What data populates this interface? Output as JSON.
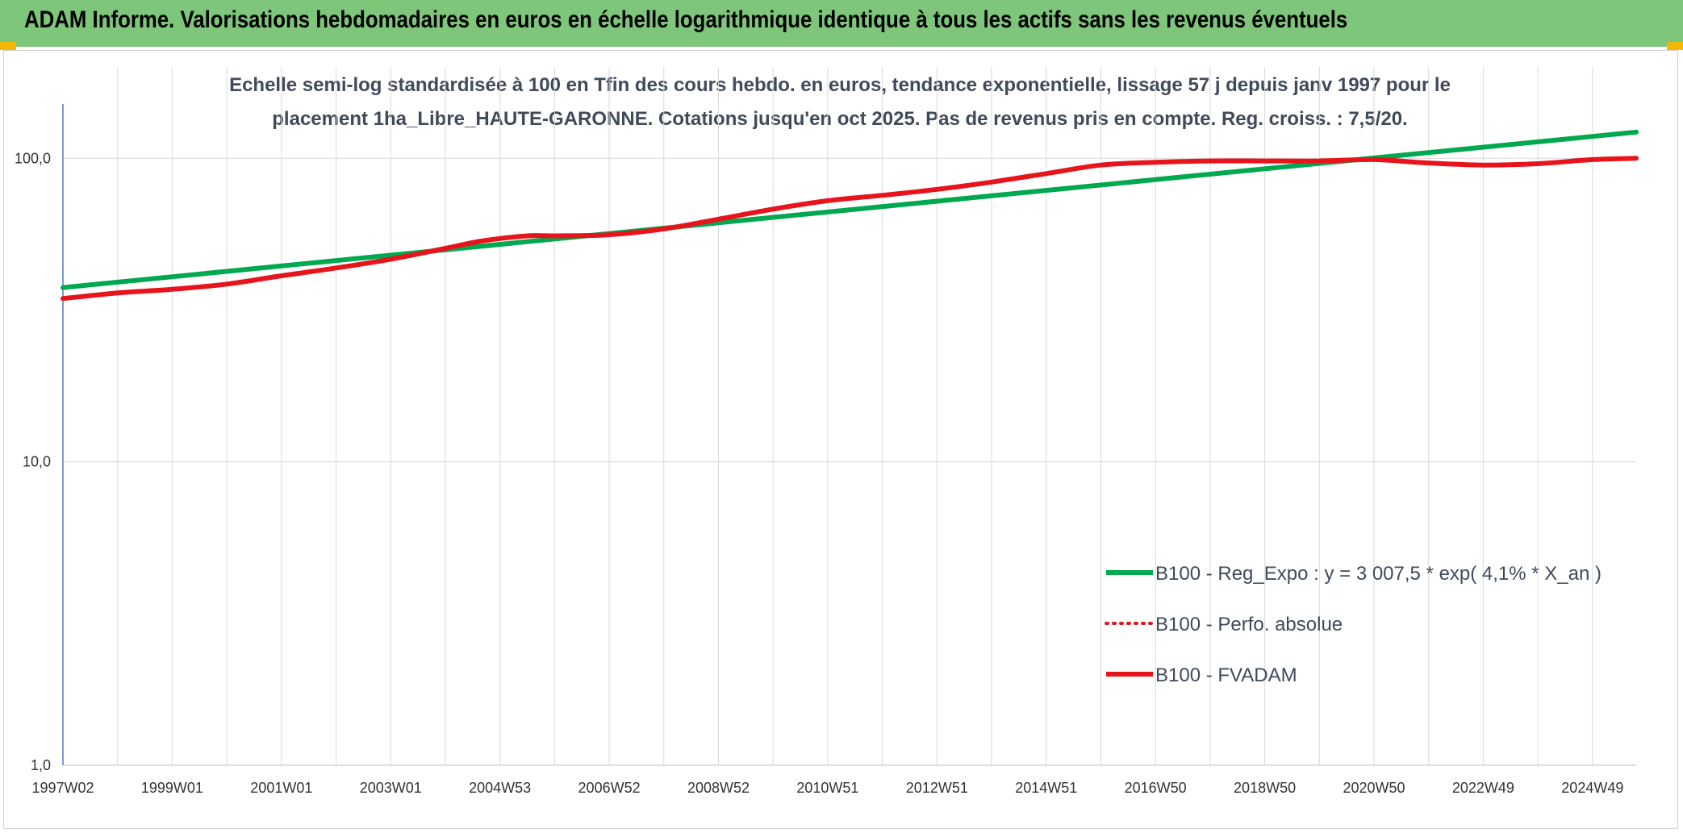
{
  "header": {
    "title": "ADAM Informe. Valorisations hebdomadaires en euros en échelle logarithmique identique à tous les actifs sans les revenus éventuels"
  },
  "colors": {
    "header_bg": "#7dc67a",
    "corner_accent": "#f2b705",
    "green_series": "#00a84f",
    "red_series": "#e8141c"
  },
  "chart_data": {
    "type": "line",
    "title_lines": [
      "Echelle semi-log standardisée à 100 en Tfin des cours hebdo. en euros, tendance exponentielle, lissage 57 j depuis janv 1997 pour le",
      "placement 1ha_Libre_HAUTE-GARONNE. Cotations jusqu'en oct 2025. Pas de revenus pris en compte. Reg. croiss. : 7,5/20."
    ],
    "y_scale": "log",
    "ylim": [
      1,
      200
    ],
    "y_ticks": [
      {
        "value": 1,
        "label": "1,0"
      },
      {
        "value": 10,
        "label": "10,0"
      },
      {
        "value": 100,
        "label": "100,0"
      }
    ],
    "xlim": [
      1997.0,
      2025.8
    ],
    "x_ticks": [
      {
        "x": 1997.0,
        "label": "1997W02"
      },
      {
        "x": 1999.0,
        "label": "1999W01"
      },
      {
        "x": 2001.0,
        "label": "2001W01"
      },
      {
        "x": 2003.0,
        "label": "2003W01"
      },
      {
        "x": 2005.0,
        "label": "2004W53"
      },
      {
        "x": 2007.0,
        "label": "2006W52"
      },
      {
        "x": 2009.0,
        "label": "2008W52"
      },
      {
        "x": 2011.0,
        "label": "2010W51"
      },
      {
        "x": 2013.0,
        "label": "2012W51"
      },
      {
        "x": 2015.0,
        "label": "2014W51"
      },
      {
        "x": 2017.0,
        "label": "2016W50"
      },
      {
        "x": 2019.0,
        "label": "2018W50"
      },
      {
        "x": 2021.0,
        "label": "2020W50"
      },
      {
        "x": 2023.0,
        "label": "2022W49"
      },
      {
        "x": 2025.0,
        "label": "2024W49"
      }
    ],
    "gridlines": true,
    "legend_position": "bottom-right",
    "series": [
      {
        "name": "B100 - Reg_Expo : y = 3 007,5 * exp( 4,1% *  X_an )",
        "color": "#00a84f",
        "style": "solid",
        "points": [
          [
            1997.0,
            37.5
          ],
          [
            2025.8,
            122
          ]
        ]
      },
      {
        "name": "B100 - Perfo. absolue",
        "color": "#e8141c",
        "style": "dotted",
        "points": []
      },
      {
        "name": "B100 - FVADAM",
        "color": "#e8141c",
        "style": "solid",
        "points": [
          [
            1997.0,
            34.5
          ],
          [
            1998.0,
            36
          ],
          [
            1999.0,
            37
          ],
          [
            2000.0,
            38.5
          ],
          [
            2001.0,
            41
          ],
          [
            2002.0,
            43.5
          ],
          [
            2003.0,
            46.5
          ],
          [
            2004.0,
            50.5
          ],
          [
            2004.7,
            53.5
          ],
          [
            2005.5,
            55.5
          ],
          [
            2006.0,
            55.5
          ],
          [
            2007.0,
            56
          ],
          [
            2008.0,
            58.5
          ],
          [
            2009.0,
            63
          ],
          [
            2010.0,
            68
          ],
          [
            2011.0,
            72.5
          ],
          [
            2012.0,
            75.5
          ],
          [
            2013.0,
            79
          ],
          [
            2014.0,
            83.5
          ],
          [
            2015.0,
            89
          ],
          [
            2016.0,
            95
          ],
          [
            2017.0,
            97
          ],
          [
            2018.0,
            98
          ],
          [
            2019.0,
            98
          ],
          [
            2020.0,
            98
          ],
          [
            2021.0,
            99
          ],
          [
            2022.0,
            96.5
          ],
          [
            2023.0,
            95
          ],
          [
            2024.0,
            96
          ],
          [
            2025.0,
            99
          ],
          [
            2025.8,
            100
          ]
        ]
      }
    ]
  }
}
